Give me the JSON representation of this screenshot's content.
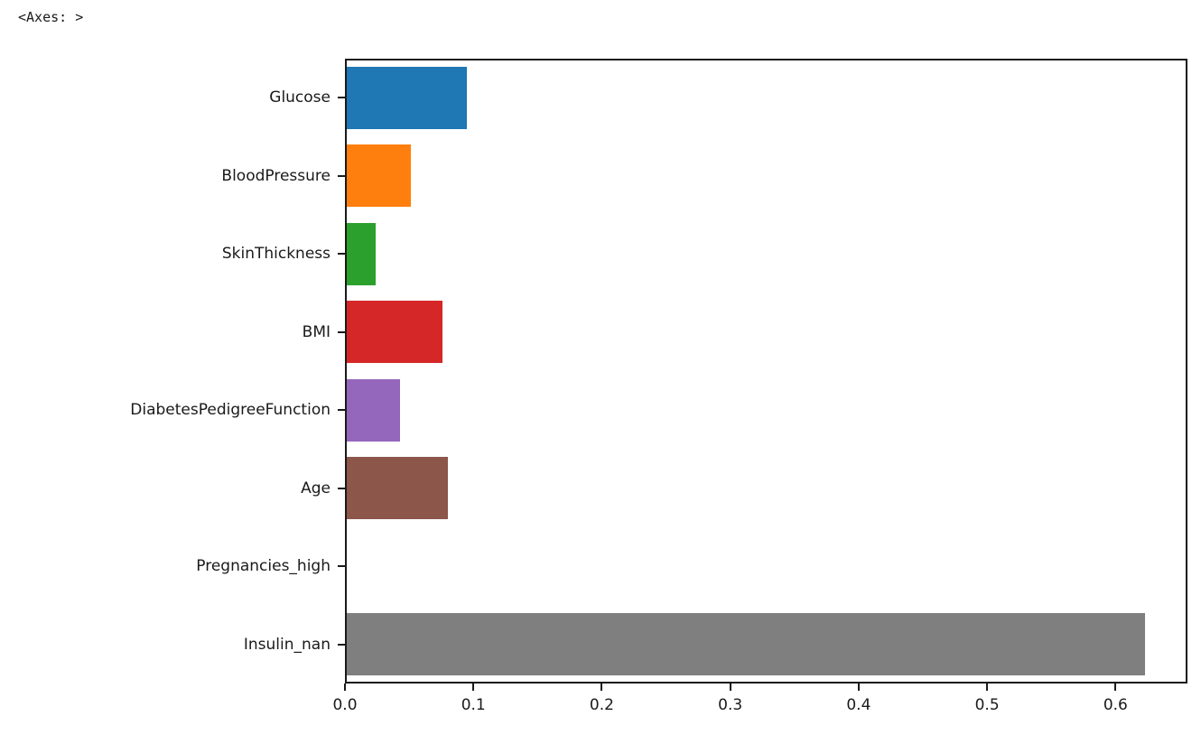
{
  "page": {
    "repr_text": "<Axes: >"
  },
  "chart_data": {
    "type": "bar",
    "orientation": "horizontal",
    "title": "",
    "xlabel": "",
    "ylabel": "",
    "categories": [
      "Glucose",
      "BloodPressure",
      "SkinThickness",
      "BMI",
      "DiabetesPedigreeFunction",
      "Age",
      "Pregnancies_high",
      "Insulin_nan"
    ],
    "values": [
      0.095,
      0.051,
      0.024,
      0.076,
      0.043,
      0.08,
      0.0,
      0.623
    ],
    "bar_colors": [
      "#1f77b4",
      "#ff7f0e",
      "#2ca02c",
      "#d62728",
      "#9467bd",
      "#8c564b",
      "#e377c2",
      "#7f7f7f"
    ],
    "xlim": [
      0,
      0.656
    ],
    "x_ticks": [
      0.0,
      0.1,
      0.2,
      0.3,
      0.4,
      0.5,
      0.6
    ],
    "x_tick_labels": [
      "0.0",
      "0.1",
      "0.2",
      "0.3",
      "0.4",
      "0.5",
      "0.6"
    ],
    "grid": false,
    "legend": null,
    "frame_color": "#1a1a1a",
    "background_color": "#ffffff"
  }
}
